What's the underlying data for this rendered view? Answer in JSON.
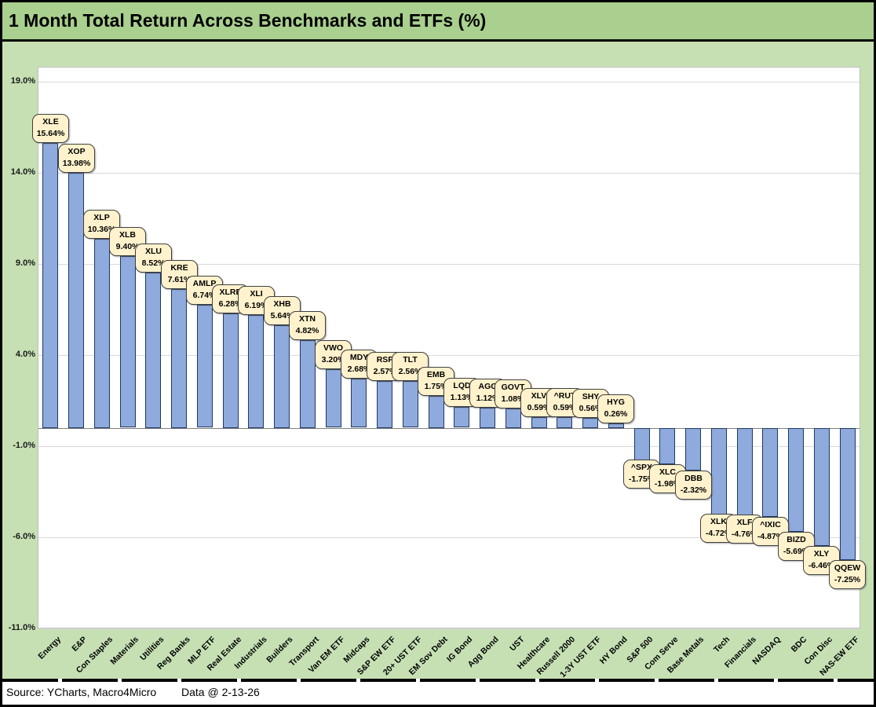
{
  "header": {
    "title": "1 Month Total Return Across Benchmarks and ETFs (%)"
  },
  "footer": {
    "source": "Source: YCharts, Macro4Micro",
    "data_date": "Data @ 2-13-26"
  },
  "colors": {
    "title_bg": "#A9D08E",
    "page_bg": "#C6E0B4",
    "plot_bg": "#FFFFFF",
    "plot_border": "#BFBFBF",
    "bar_fill": "#8FAADC",
    "bar_border": "#1F3864",
    "callout_fill": "#FFF2CC",
    "callout_border": "#3F3F3F",
    "gridline": "#D9D9D9",
    "axis_line": "#808080",
    "text": "#000000"
  },
  "chart_data": {
    "type": "bar",
    "title": "1 Month Total Return Across Benchmarks and ETFs (%)",
    "xlabel": "",
    "ylabel": "",
    "ylim": [
      -11,
      19.8
    ],
    "grid": true,
    "legend": false,
    "yticks": {
      "values": [
        19,
        14,
        9,
        4,
        -1,
        -6,
        -11
      ],
      "labels": [
        "19.0%",
        "14.0%",
        "9.0%",
        "4.0%",
        "-1.0%",
        "-6.0%",
        "-11.0%"
      ]
    },
    "categories": [
      "Energy",
      "E&P",
      "Con Staples",
      "Materials",
      "Utilities",
      "Reg Banks",
      "MLP ETF",
      "Real Estate",
      "Industrials",
      "Builders",
      "Transport",
      "Van EM ETF",
      "Midcaps",
      "S&P EW ETF",
      "20+ UST ETF",
      "EM Sov Debt",
      "IG Bond",
      "Agg Bond",
      "UST",
      "Healthcare",
      "Russell 2000",
      "1-3Y UST ETF",
      "HY Bond",
      "S&P 500",
      "Com Serve",
      "Base Metals",
      "Tech",
      "Financials",
      "NASDAQ",
      "BDC",
      "Con Disc",
      "NAS-EW ETF"
    ],
    "tickers": [
      "XLE",
      "XOP",
      "XLP",
      "XLB",
      "XLU",
      "KRE",
      "AMLP",
      "XLRE",
      "XLI",
      "XHB",
      "XTN",
      "VWO",
      "MDY",
      "RSP",
      "TLT",
      "EMB",
      "LQD",
      "AGG",
      "GOVT",
      "XLV",
      "^RUT",
      "SHY",
      "HYG",
      "^SPX",
      "XLC",
      "DBB",
      "XLK",
      "XLF",
      "^IXIC",
      "BIZD",
      "XLY",
      "QQEW"
    ],
    "values": [
      15.64,
      13.98,
      10.36,
      9.4,
      8.52,
      7.61,
      6.74,
      6.28,
      6.19,
      5.64,
      4.82,
      3.2,
      2.68,
      2.57,
      2.56,
      1.75,
      1.13,
      1.12,
      1.08,
      0.59,
      0.59,
      0.56,
      0.26,
      -1.75,
      -1.98,
      -2.32,
      -4.72,
      -4.76,
      -4.87,
      -5.69,
      -6.46,
      -7.25
    ],
    "value_labels": [
      "15.64%",
      "13.98%",
      "10.36%",
      "9.40%",
      "8.52%",
      "7.61%",
      "6.74%",
      "6.28%",
      "6.19%",
      "5.64%",
      "4.82%",
      "3.20%",
      "2.68%",
      "2.57%",
      "2.56%",
      "1.75%",
      "1.13%",
      "1.12%",
      "1.08%",
      "0.59%",
      "0.59%",
      "0.56%",
      "0.26%",
      "-1.75%",
      "-1.98%",
      "-2.32%",
      "-4.72%",
      "-4.76%",
      "-4.87%",
      "-5.69%",
      "-6.46%",
      "-7.25%"
    ]
  }
}
